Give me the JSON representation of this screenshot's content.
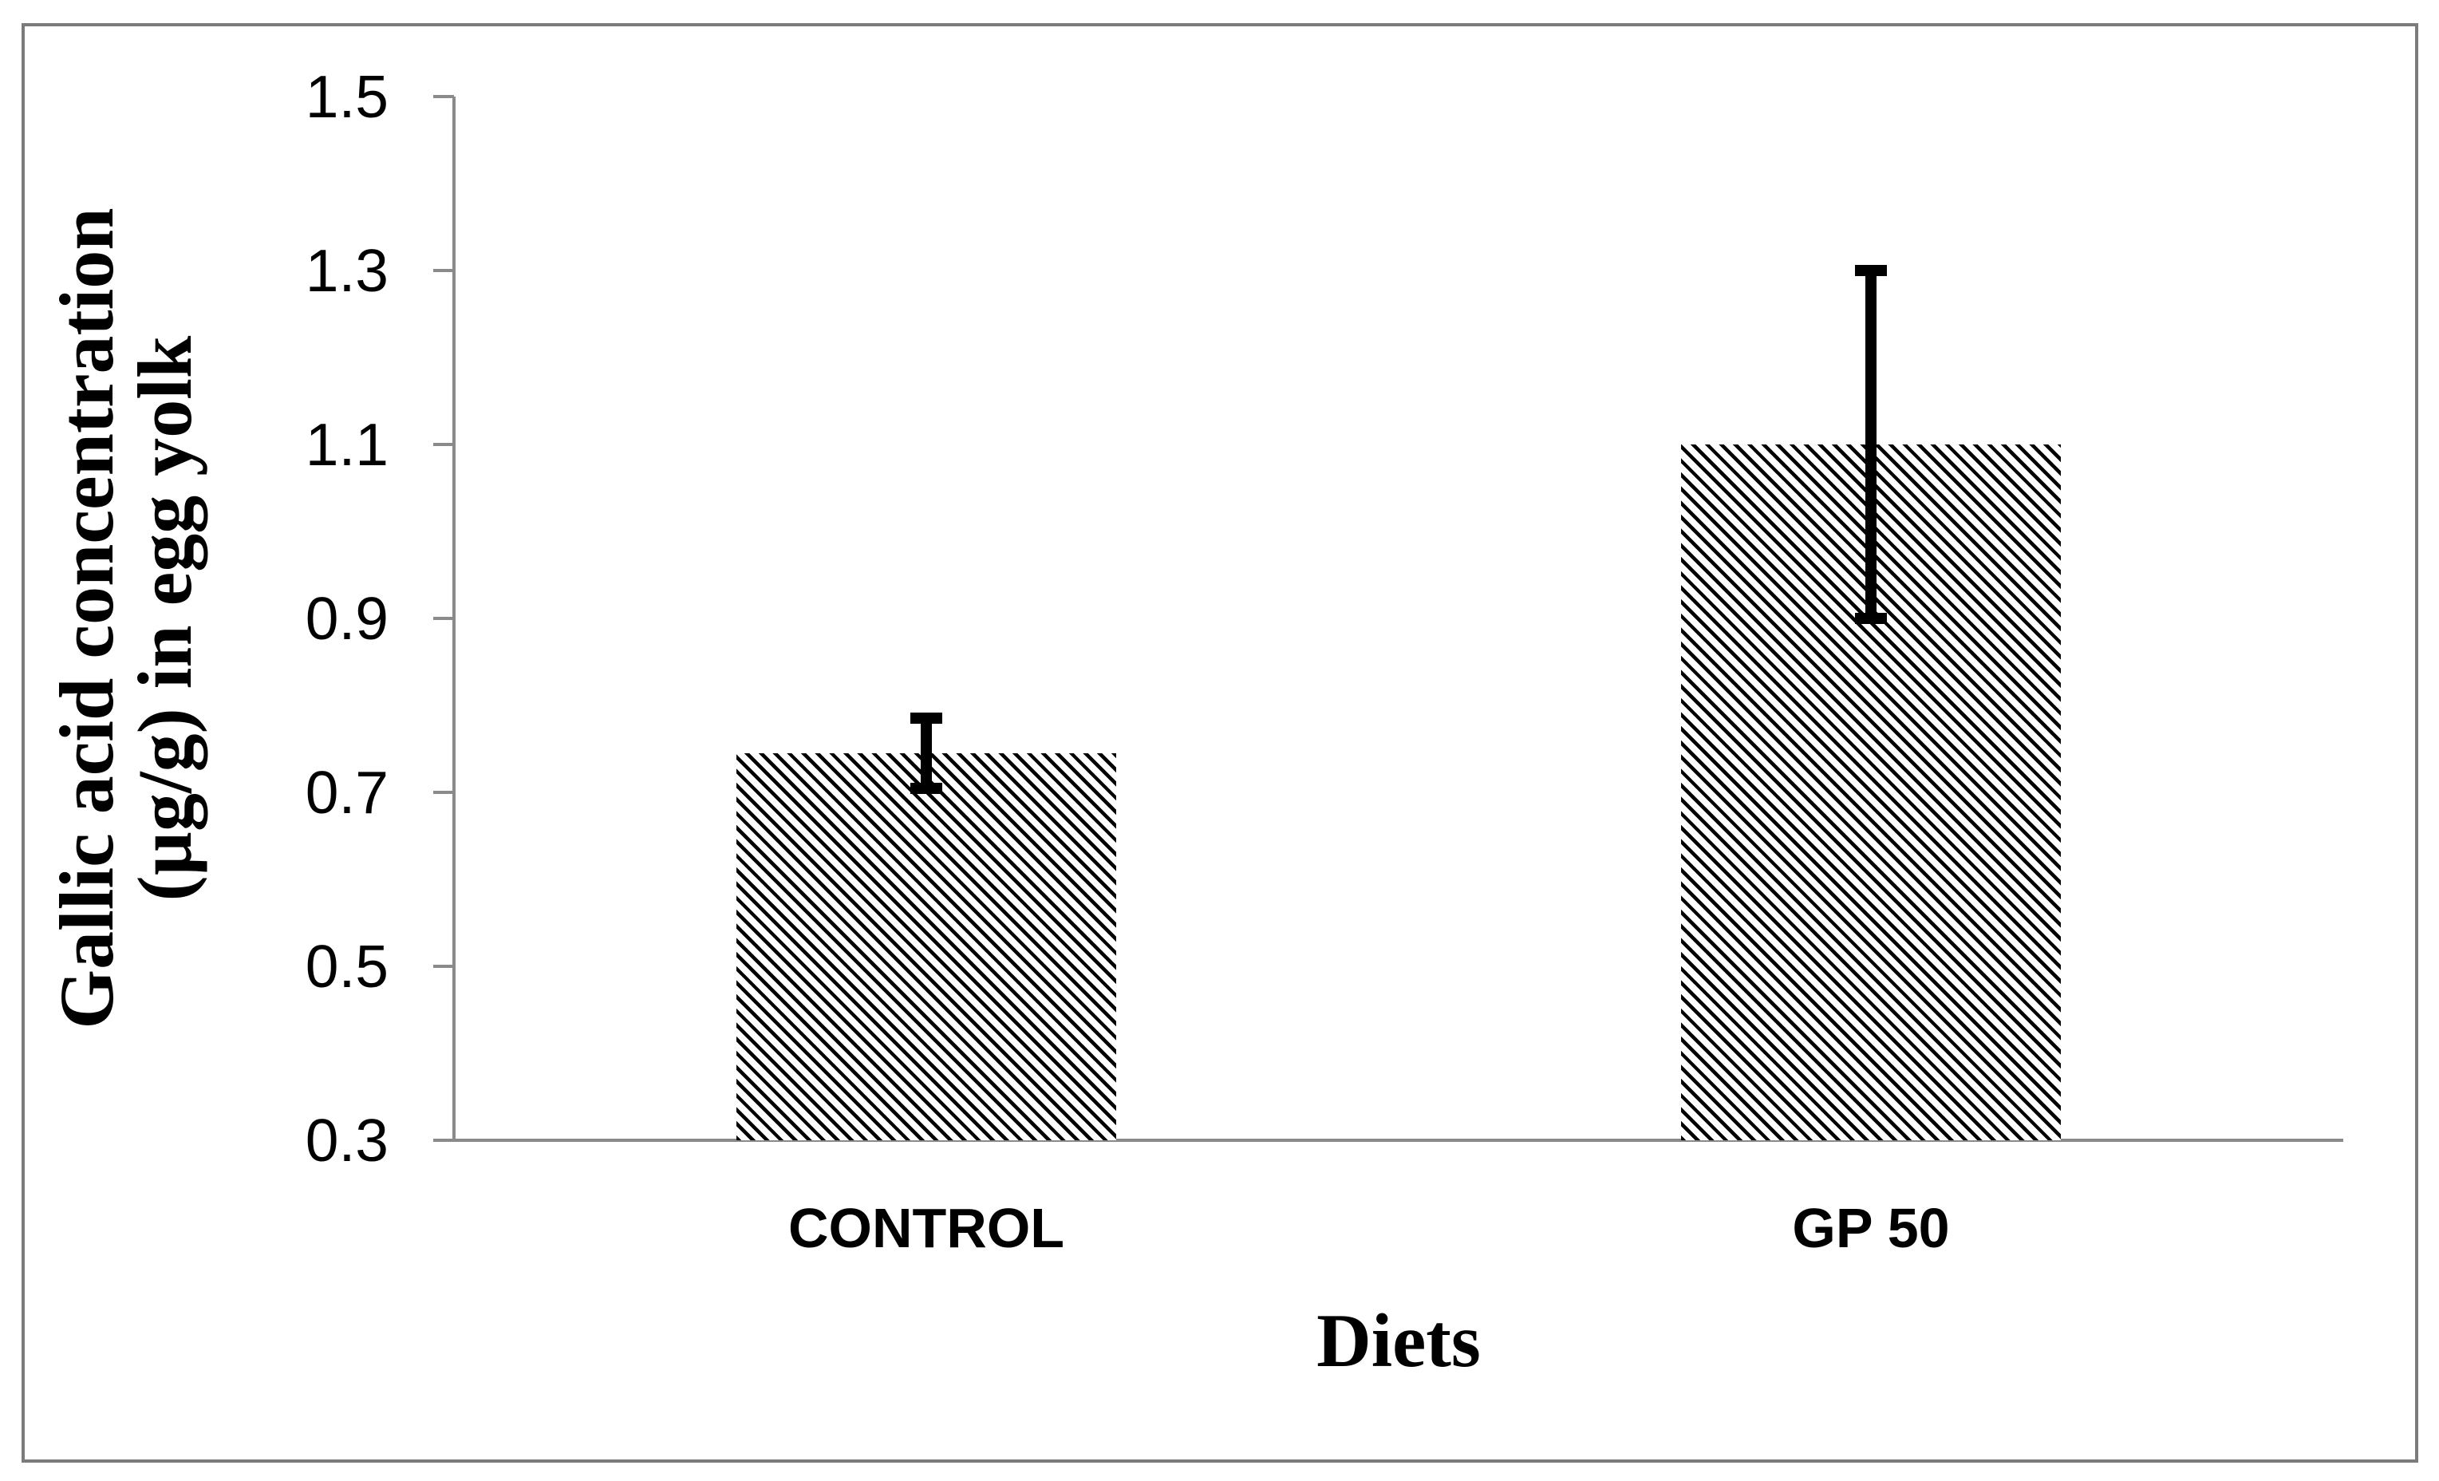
{
  "figure": {
    "border_color": "#7b7b7b",
    "background": "#ffffff",
    "axis_color": "#8a8a8a",
    "hatch_color": "#000000",
    "hatch_style": "diagonal-stripes-45deg"
  },
  "chart_data": {
    "type": "bar",
    "categories": [
      "CONTROL",
      "GP 50"
    ],
    "values": [
      0.745,
      1.1
    ],
    "error_low": [
      0.705,
      0.9
    ],
    "error_high": [
      0.785,
      1.3
    ],
    "title": "",
    "xlabel": "Diets",
    "ylabel": "Gallic acid concentration (µg/g) in egg yolk",
    "ylabel_line1": "Gallic acid concentration",
    "ylabel_line2": "(µg/g) in egg yolk",
    "ylim": [
      0.3,
      1.5
    ],
    "ytick_labels": [
      "0.3",
      "0.5",
      "0.7",
      "0.9",
      "1.1",
      "1.3",
      "1.5"
    ],
    "ytick_values": [
      0.3,
      0.5,
      0.7,
      0.9,
      1.1,
      1.3,
      1.5
    ],
    "grid": false,
    "legend": false,
    "bar_fill": "black diagonal hatch on white"
  }
}
